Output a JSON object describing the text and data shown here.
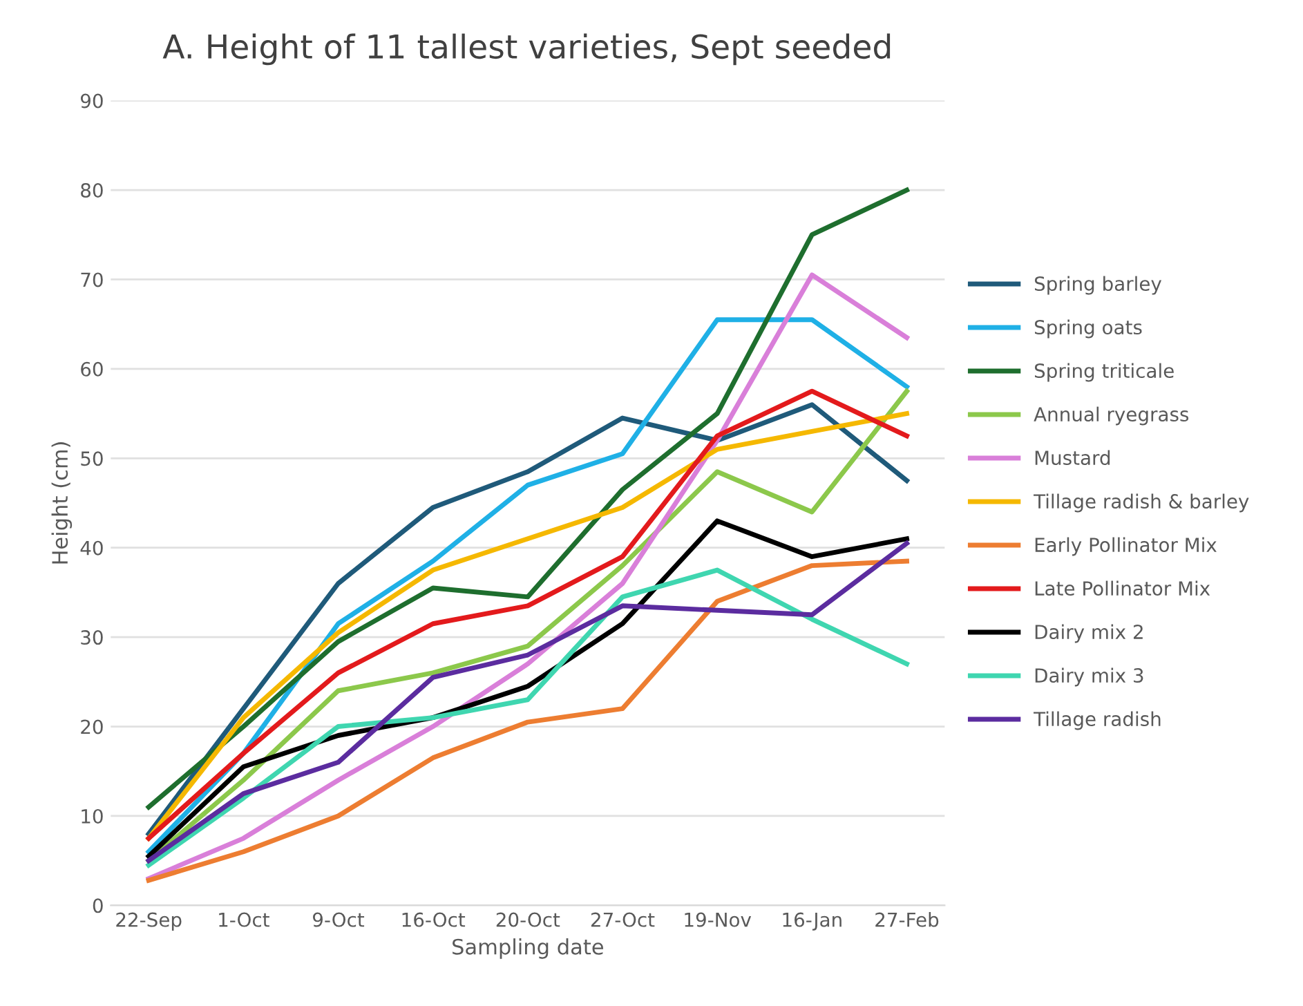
{
  "chart_data": {
    "type": "line",
    "title": "A. Height of 11 tallest varieties, Sept seeded",
    "xlabel": "Sampling date",
    "ylabel": "Height (cm)",
    "categories": [
      "22-Sep",
      "1-Oct",
      "9-Oct",
      "16-Oct",
      "20-Oct",
      "27-Oct",
      "19-Nov",
      "16-Jan",
      "27-Feb"
    ],
    "ylim": [
      0,
      90
    ],
    "yticks": [
      0,
      10,
      20,
      30,
      40,
      50,
      60,
      70,
      80,
      90
    ],
    "grid": "y",
    "legend": "right",
    "marker": "none",
    "line_style": "solid",
    "series": [
      {
        "name": "Spring barley",
        "color": "#1f5a7a",
        "values": [
          8,
          22,
          36,
          44.5,
          48.5,
          54.5,
          52,
          56,
          47.5
        ]
      },
      {
        "name": "Spring oats",
        "color": "#1fb0e6",
        "values": [
          6,
          17,
          31.5,
          38.5,
          47,
          50.5,
          65.5,
          65.5,
          58
        ]
      },
      {
        "name": "Spring triticale",
        "color": "#1e6e2e",
        "values": [
          11,
          20,
          29.5,
          35.5,
          34.5,
          46.5,
          55,
          75,
          80
        ]
      },
      {
        "name": "Annual ryegrass",
        "color": "#8cc84b",
        "values": [
          5,
          14,
          24,
          26,
          29,
          38,
          48.5,
          44,
          57.5
        ]
      },
      {
        "name": "Mustard",
        "color": "#d97fd9",
        "values": [
          3,
          7.5,
          14,
          20,
          27,
          36,
          52,
          70.5,
          63.5
        ]
      },
      {
        "name": "Tillage radish & barley",
        "color": "#f5b800",
        "values": [
          7.5,
          21,
          30.5,
          37.5,
          41,
          44.5,
          51,
          53,
          55
        ]
      },
      {
        "name": "Early Pollinator Mix",
        "color": "#ed7d31",
        "values": [
          2.8,
          6,
          10,
          16.5,
          20.5,
          22,
          34,
          38,
          38.5
        ]
      },
      {
        "name": "Late Pollinator Mix",
        "color": "#e31a1c",
        "values": [
          7.5,
          17,
          26,
          31.5,
          33.5,
          39,
          52.5,
          57.5,
          52.5
        ]
      },
      {
        "name": "Dairy mix 2",
        "color": "#000000",
        "values": [
          5.5,
          15.5,
          19,
          21,
          24.5,
          31.5,
          43,
          39,
          41
        ]
      },
      {
        "name": "Dairy mix 3",
        "color": "#3fd6b0",
        "values": [
          4.5,
          12,
          20,
          21,
          23,
          34.5,
          37.5,
          32,
          27
        ]
      },
      {
        "name": "Tillage radish",
        "color": "#5b2c9f",
        "values": [
          5,
          12.5,
          16,
          25.5,
          28,
          33.5,
          33,
          32.5,
          40.5
        ]
      }
    ]
  }
}
